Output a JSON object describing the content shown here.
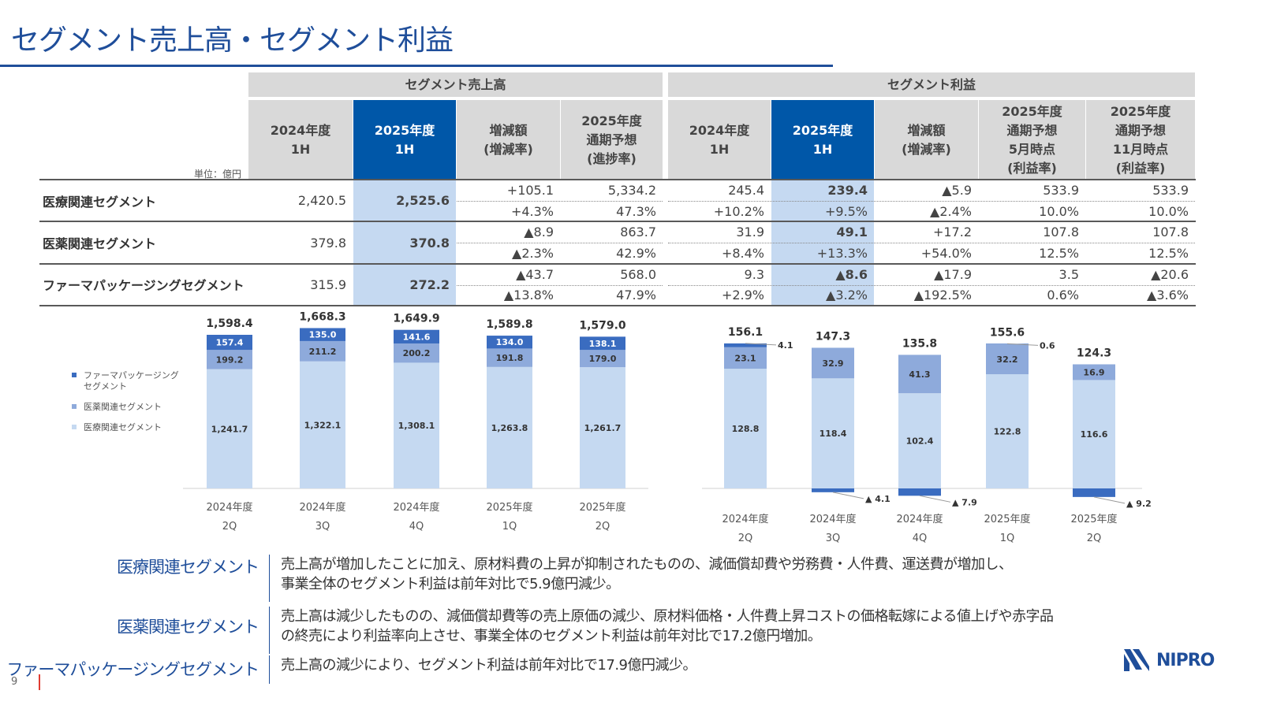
{
  "title": "セグメント売上高・セグメント利益",
  "table": {
    "unit": "単位：億円",
    "groups": {
      "sales": "セグメント売上高",
      "profit": "セグメント利益"
    },
    "sales_headers": [
      "2024年度\n1H",
      "2025年度\n1H",
      "増減額\n(増減率)",
      "2025年度\n通期予想\n(進捗率)"
    ],
    "profit_headers": [
      "2024年度\n1H",
      "2025年度\n1H",
      "増減額\n(増減率)",
      "2025年度\n通期予想\n5月時点\n(利益率)",
      "2025年度\n通期予想\n11月時点\n(利益率)"
    ],
    "rows": [
      {
        "label": "医療関連セグメント",
        "sales": {
          "fy24": "2,420.5",
          "fy25": "2,525.6",
          "change": "+105.1",
          "change_rate": "+4.3%",
          "forecast": "5,334.2",
          "progress": "47.3%"
        },
        "profit": [
          [
            "245.4",
            "239.4",
            "▲5.9",
            "533.9",
            "533.9"
          ],
          [
            "+10.2%",
            "+9.5%",
            "▲2.4%",
            "10.0%",
            "10.0%"
          ]
        ]
      },
      {
        "label": "医薬関連セグメント",
        "sales": {
          "fy24": "379.8",
          "fy25": "370.8",
          "change": "▲8.9",
          "change_rate": "▲2.3%",
          "forecast": "863.7",
          "progress": "42.9%"
        },
        "profit": [
          [
            "31.9",
            "49.1",
            "+17.2",
            "107.8",
            "107.8"
          ],
          [
            "+8.4%",
            "+13.3%",
            "+54.0%",
            "12.5%",
            "12.5%"
          ]
        ]
      },
      {
        "label": "ファーマパッケージングセグメント",
        "sales": {
          "fy24": "315.9",
          "fy25": "272.2",
          "change": "▲43.7",
          "change_rate": "▲13.8%",
          "forecast": "568.0",
          "progress": "47.9%"
        },
        "profit": [
          [
            "9.3",
            "▲8.6",
            "▲17.9",
            "3.5",
            "▲20.6"
          ],
          [
            "+2.9%",
            "▲3.2%",
            "▲192.5%",
            "0.6%",
            "▲3.6%"
          ]
        ]
      }
    ]
  },
  "chart_data": [
    {
      "type": "bar",
      "stacked": true,
      "categories": [
        [
          "2024年度",
          "2Q"
        ],
        [
          "2024年度",
          "3Q"
        ],
        [
          "2024年度",
          "4Q"
        ],
        [
          "2025年度",
          "1Q"
        ],
        [
          "2025年度",
          "2Q"
        ]
      ],
      "series": [
        {
          "name": "医療関連セグメント",
          "values": [
            1241.7,
            1322.1,
            1308.1,
            1263.8,
            1261.7
          ],
          "labels": [
            "1,241.7",
            "1,322.1",
            "1,308.1",
            "1,263.8",
            "1,261.7"
          ],
          "color": "#c5d9f1"
        },
        {
          "name": "医薬関連セグメント",
          "values": [
            199.2,
            211.2,
            200.2,
            191.8,
            179.0
          ],
          "labels": [
            "199.2",
            "211.2",
            "200.2",
            "191.8",
            "179.0"
          ],
          "color": "#8eaadb"
        },
        {
          "name": "ファーマパッケージング\nセグメント",
          "values": [
            157.4,
            135.0,
            141.6,
            134.0,
            138.1
          ],
          "labels": [
            "157.4",
            "135.0",
            "141.6",
            "134.0",
            "138.1"
          ],
          "color": "#3a6cc0"
        }
      ],
      "totals": [
        "1,598.4",
        "1,668.3",
        "1,649.9",
        "1,589.8",
        "1,579.0"
      ],
      "legend": "left"
    },
    {
      "type": "bar",
      "stacked": true,
      "categories": [
        [
          "2024年度",
          "2Q"
        ],
        [
          "2024年度",
          "3Q"
        ],
        [
          "2024年度",
          "4Q"
        ],
        [
          "2025年度",
          "1Q"
        ],
        [
          "2025年度",
          "2Q"
        ]
      ],
      "series": [
        {
          "name": "医療関連セグメント",
          "values": [
            128.8,
            118.4,
            102.4,
            122.8,
            116.6
          ],
          "labels": [
            "128.8",
            "118.4",
            "102.4",
            "122.8",
            "116.6"
          ],
          "color": "#c5d9f1"
        },
        {
          "name": "医薬関連セグメント",
          "values": [
            23.1,
            32.9,
            41.3,
            32.2,
            16.9
          ],
          "labels": [
            "23.1",
            "32.9",
            "41.3",
            "32.2",
            "16.9"
          ],
          "color": "#8eaadb"
        },
        {
          "name": "ファーマパッケージングセグメント",
          "values": [
            4.1,
            -4.1,
            -7.9,
            0.6,
            -9.2
          ],
          "labels": [
            "4.1",
            "▲ 4.1",
            "▲ 7.9",
            "0.6",
            "▲ 9.2"
          ],
          "color": "#3a6cc0"
        }
      ],
      "totals": [
        "156.1",
        "147.3",
        "135.8",
        "155.6",
        "124.3"
      ]
    }
  ],
  "comments": [
    {
      "segment": "医療関連セグメント",
      "text": "売上高が増加したことに加え、原材料費の上昇が抑制されたものの、減価償却費や労務費・人件費、運送費が増加し、\n事業全体のセグメント利益は前年対比で5.9億円減少。"
    },
    {
      "segment": "医薬関連セグメント",
      "text": "売上高は減少したものの、減価償却費等の売上原価の減少、原材料価格・人件費上昇コストの価格転嫁による値上げや赤字品\nの終売により利益率向上させ、事業全体のセグメント利益は前年対比で17.2億円増加。"
    },
    {
      "segment": "ファーマパッケージングセグメント",
      "text": "売上高の減少により、セグメント利益は前年対比で17.9億円減少。"
    }
  ],
  "page_number": "9",
  "logo": "NIPRO",
  "colors": {
    "brand": "#1f4e9a",
    "header_highlight": "#0057a8",
    "column_highlight": "#c5d9f1"
  }
}
